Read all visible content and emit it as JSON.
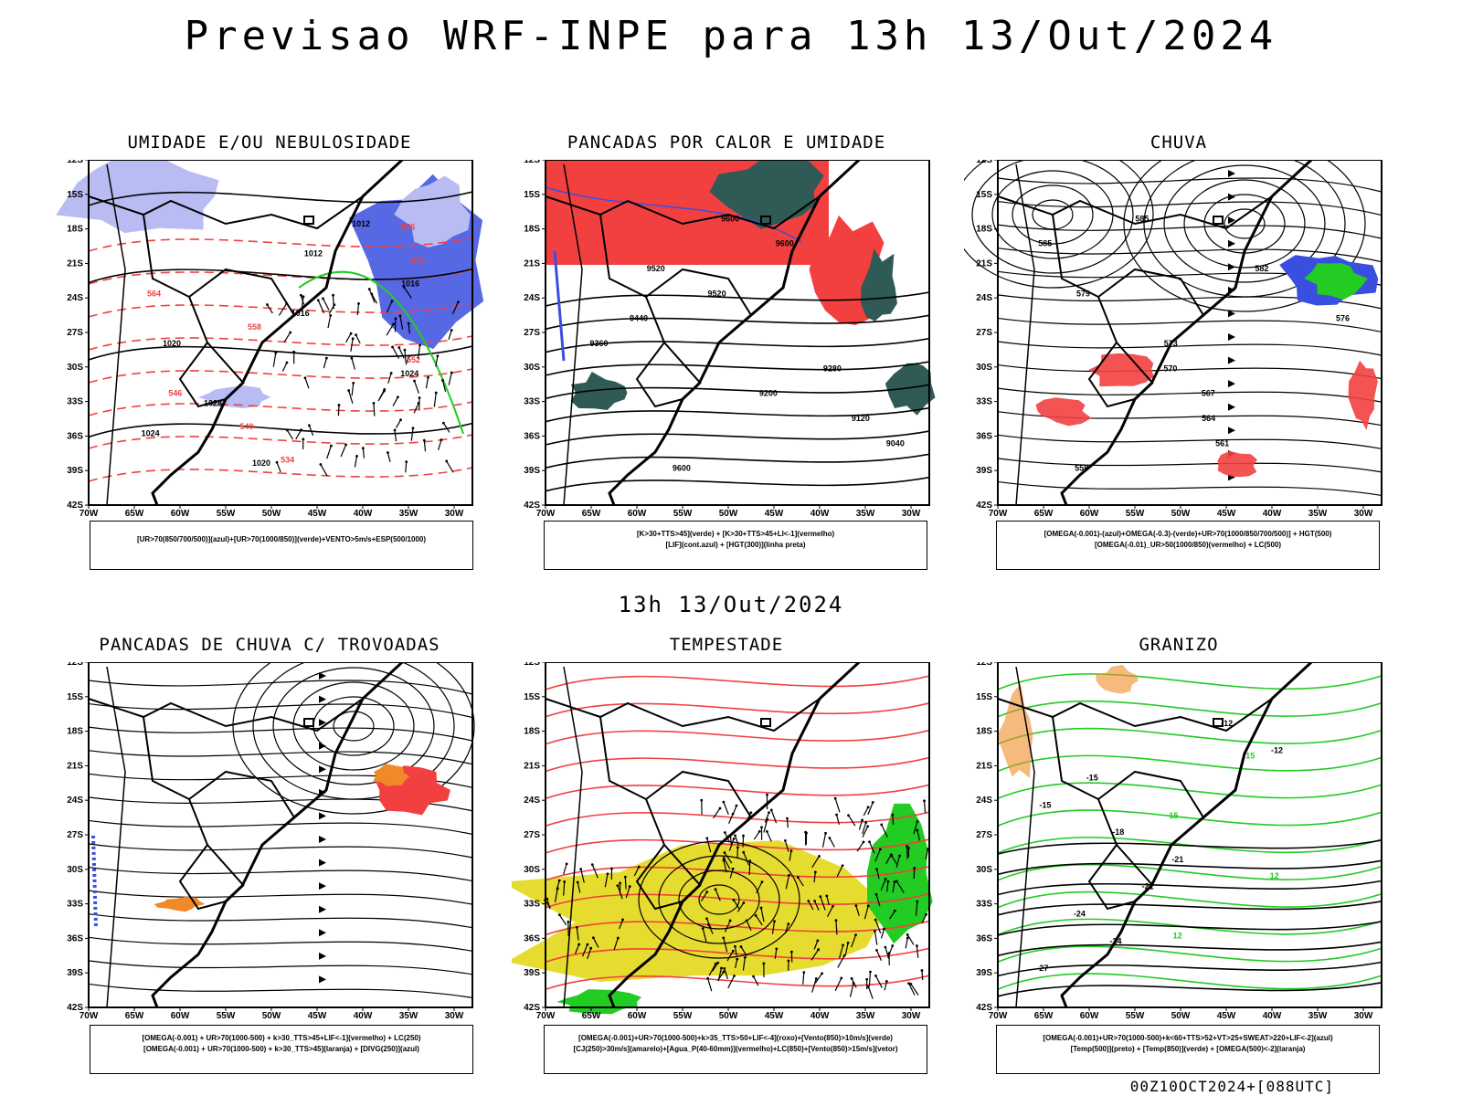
{
  "title": "Previsao WRF-INPE  para 13h 13/Out/2024",
  "subtitle": "13h 13/Out/2024",
  "footer": "00Z10OCT2024+[088UTC]",
  "lat_labels": [
    "12S",
    "15S",
    "18S",
    "21S",
    "24S",
    "27S",
    "30S",
    "33S",
    "36S",
    "39S",
    "42S"
  ],
  "lon_labels": [
    "70W",
    "65W",
    "60W",
    "55W",
    "50W",
    "45W",
    "40W",
    "35W",
    "30W"
  ],
  "colors": {
    "red": "#f24040",
    "blue": "#3a4ee0",
    "lightblue": "#b8bcf2",
    "green": "#22cc22",
    "yellow": "#e6dc30",
    "darkteal": "#2f5a55",
    "orange": "#f08a28"
  },
  "panels": [
    {
      "title": "UMIDADE E/OU NEBULOSIDADE",
      "legend": [
        "[UR>70(850/700/500)](azul)+[UR>70(1000/850)](verde)+VENTO>5m/s+ESP(500/1000)"
      ],
      "contour_labels": [
        "1012",
        "1012",
        "1016",
        "1016",
        "1020",
        "1024",
        "1028",
        "1024",
        "1020",
        "576",
        "570",
        "564",
        "558",
        "552",
        "546",
        "540",
        "534"
      ]
    },
    {
      "title": "PANCADAS POR CALOR E UMIDADE",
      "legend": [
        "[K>30+TTS>45](verde) + [K>30+TTS>45+LI<-1](vermelho)",
        "[LIF](cont.azul) + [HGT(300)](linha preta)"
      ],
      "contour_labels": [
        "9600",
        "9600",
        "9520",
        "9520",
        "9440",
        "9360",
        "9280",
        "9200",
        "9120",
        "9040",
        "9600"
      ]
    },
    {
      "title": "CHUVA",
      "legend": [
        "[OMEGA(-0.001)-(azul)+OMEGA(-0.3)-(verde)+UR>70(1000/850/700/500)] + HGT(500)",
        "[OMEGA(-0.01)_UR>50(1000/850)(vermelho) + LC(500)"
      ],
      "contour_labels": [
        "585",
        "585",
        "582",
        "579",
        "576",
        "573",
        "570",
        "567",
        "564",
        "561",
        "558"
      ]
    },
    {
      "title": "PANCADAS DE CHUVA C/ TROVOADAS",
      "legend": [
        "[OMEGA(-0.001) + UR>70(1000-500) + k>30_TTS>45+LIF<-1](vermelho) + LC(250)",
        "[OMEGA(-0.001) + UR>70(1000-500) + k>30_TTS>45](laranja) + [DIVG(250)](azul)"
      ],
      "contour_labels": []
    },
    {
      "title": "TEMPESTADE",
      "legend": [
        "[OMEGA(-0.001)+UR>70(1000-500)+k>35_TTS>50+LIF<-4](roxo)+[Vento(850)>10m/s](verde)",
        "[CJ(250)>30m/s](amarelo)+[Agua_P(40-60mm)](vermelho)+LC(850)+[Vento(850)>15m/s](vetor)"
      ],
      "contour_labels": []
    },
    {
      "title": "GRANIZO",
      "legend": [
        "[OMEGA(-0.001)+UR>70(1000-500)+k<60+TTS>52+VT>25+SWEAT>220+LIF<-2](azul)",
        "[Temp(500)](preto) + [Temp(850)](verde) + [OMEGA(500)<-2](laranja)"
      ],
      "contour_labels": [
        "-12",
        "-12",
        "-15",
        "-15",
        "-18",
        "-21",
        "-21",
        "-24",
        "-24",
        "-27",
        "15",
        "15",
        "12",
        "12"
      ]
    }
  ]
}
